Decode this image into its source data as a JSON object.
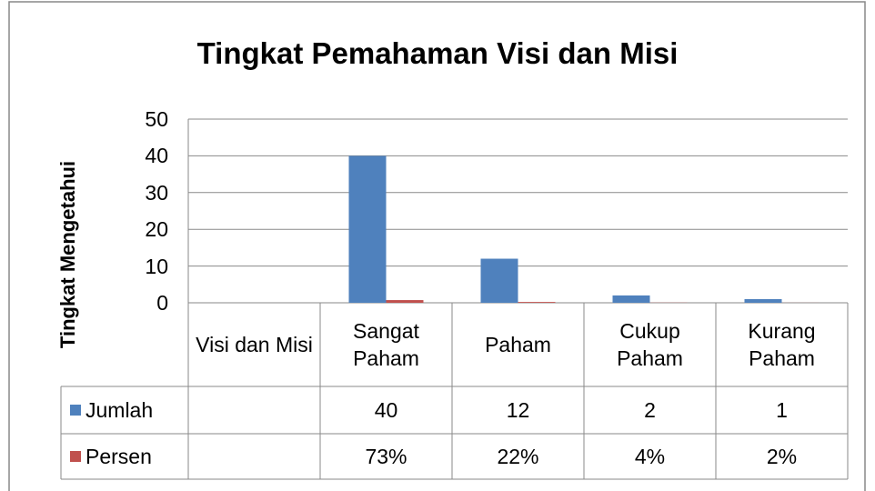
{
  "chart_data": {
    "type": "bar",
    "title": "Tingkat Pemahaman Visi dan Misi",
    "y_label": "Tingkat Mengetahui",
    "categories": [
      "Visi dan Misi",
      "Sangat Paham",
      "Paham",
      "Cukup Paham",
      "Kurang Paham"
    ],
    "series": [
      {
        "name": "Jumlah",
        "color": "#4f81bd",
        "values": [
          null,
          40,
          12,
          2,
          1
        ]
      },
      {
        "name": "Persen",
        "color": "#c0504d",
        "values": [
          null,
          0.73,
          0.22,
          0.04,
          0.02
        ],
        "value_labels": [
          null,
          "73%",
          "22%",
          "4%",
          "2%"
        ]
      }
    ],
    "ylim": [
      0,
      50
    ],
    "yticks": [
      0,
      10,
      20,
      30,
      40,
      50
    ],
    "grid": true,
    "data_table": true
  }
}
